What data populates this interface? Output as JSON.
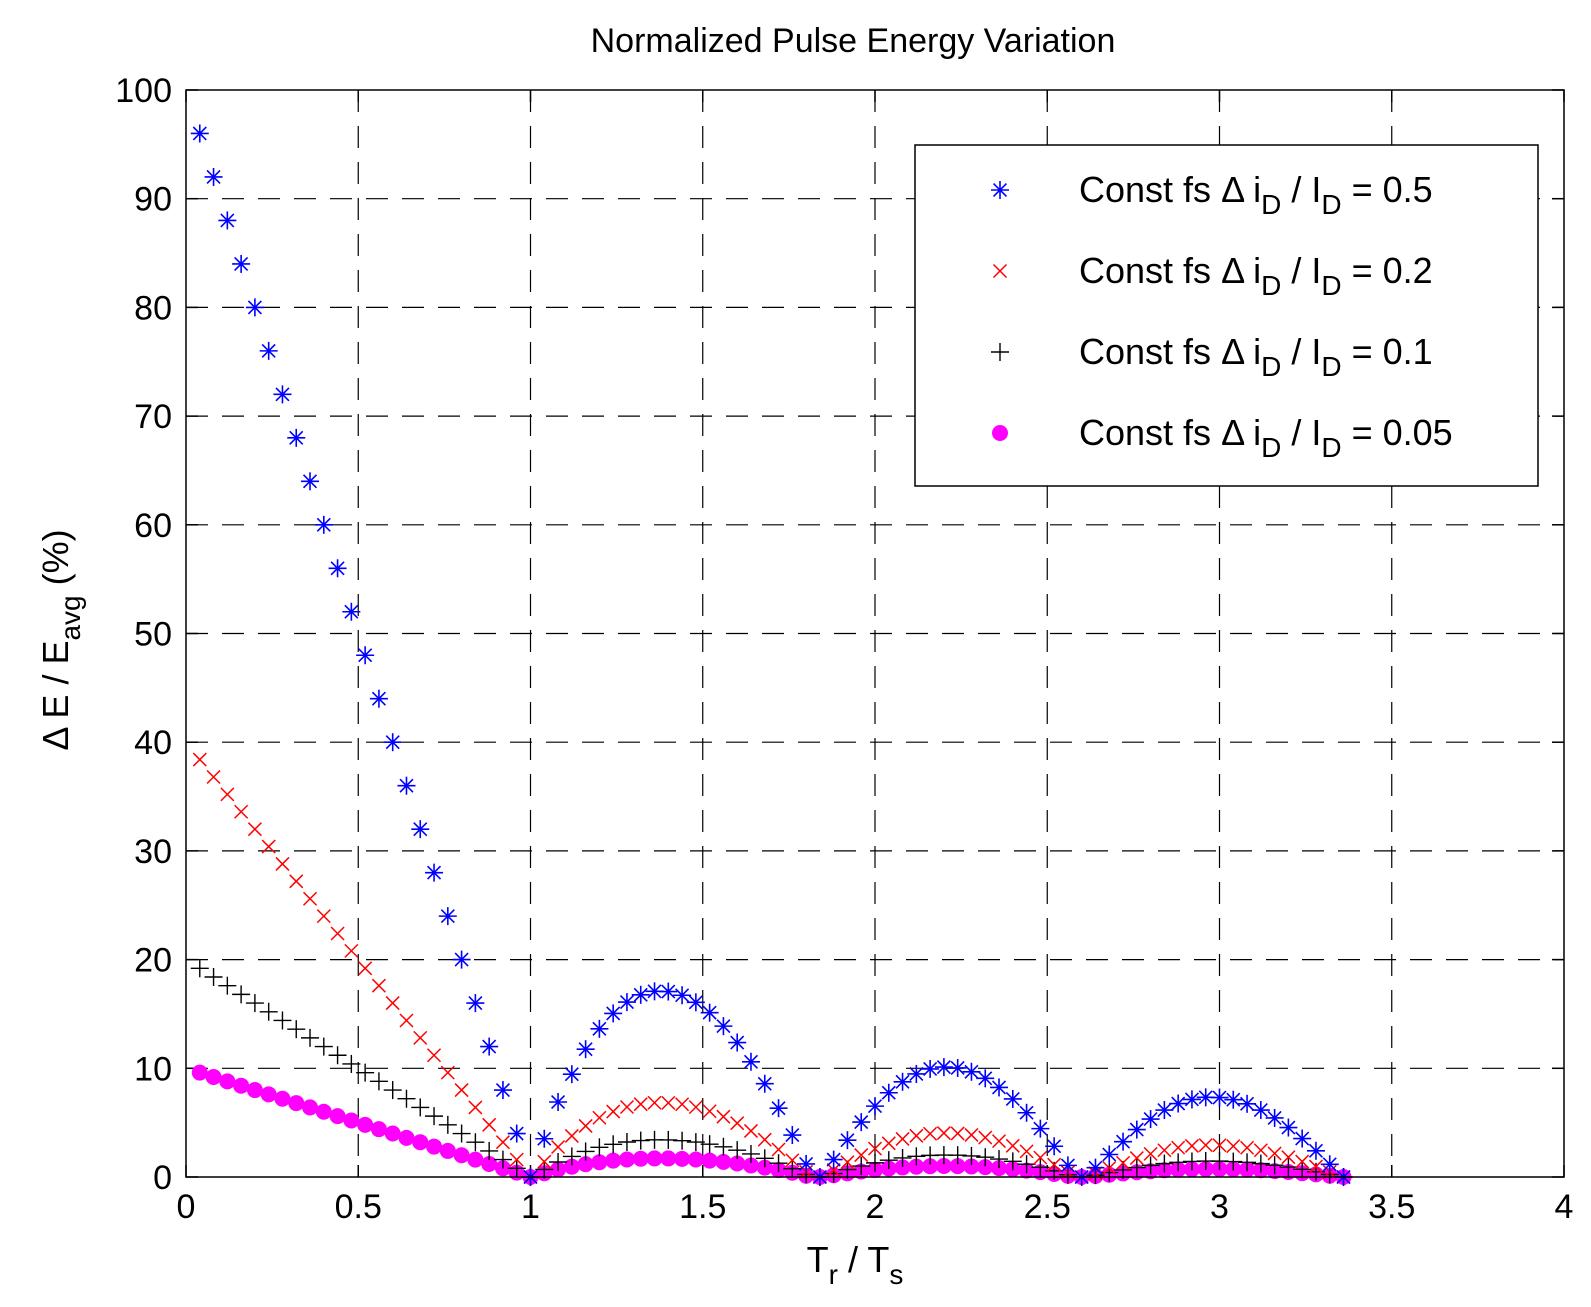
{
  "chart_data": {
    "type": "scatter",
    "title": "Normalized Pulse Energy Variation",
    "xlabel": {
      "main": "T",
      "sub": "r",
      "mid": " / T",
      "sub2": "s"
    },
    "ylabel": {
      "pre": "Δ E / E",
      "sub": "avg",
      "post": " (%)"
    },
    "xlim": [
      0,
      4
    ],
    "ylim": [
      0,
      100
    ],
    "xticks": [
      0,
      0.5,
      1,
      1.5,
      2,
      2.5,
      3,
      3.5,
      4
    ],
    "xtick_labels": [
      "0",
      "0.5",
      "1",
      "1.5",
      "2",
      "2.5",
      "3",
      "3.5",
      "4"
    ],
    "yticks": [
      0,
      10,
      20,
      30,
      40,
      50,
      60,
      70,
      80,
      90,
      100
    ],
    "ytick_labels": [
      "0",
      "10",
      "20",
      "30",
      "40",
      "50",
      "60",
      "70",
      "80",
      "90",
      "100"
    ],
    "grid": true,
    "legend_position": "top-right",
    "sample_step": 0.04,
    "series": [
      {
        "legend": {
          "pre": "Const fs ",
          "delta": "Δ",
          "i": " i",
          "isub": "D",
          "mid": " / I",
          "Isub": "D",
          "post": " = 0.5"
        },
        "marker": "asterisk",
        "color": "#0000ff",
        "values": [
          96,
          92,
          88,
          84,
          80,
          76,
          72,
          68,
          64,
          60,
          56,
          52,
          48,
          44,
          40,
          36,
          32,
          28,
          24,
          20,
          16,
          12,
          8,
          4,
          0,
          3.52,
          6.9,
          9.46,
          11.76,
          13.63,
          15.05,
          16.09,
          16.76,
          17.08,
          17.06,
          16.72,
          16.07,
          15.12,
          13.88,
          12.37,
          10.6,
          8.58,
          6.33,
          3.86,
          1.2,
          0,
          1.6,
          3.39,
          5.05,
          6.52,
          7.75,
          8.76,
          9.48,
          9.94,
          10.11,
          10.03,
          9.68,
          9.08,
          8.24,
          7.18,
          5.91,
          4.45,
          2.83,
          1.07,
          0,
          0.86,
          2.07,
          3.25,
          4.36,
          5.33,
          6.16,
          6.76,
          7.14,
          7.33,
          7.31,
          7.11,
          6.73,
          6.16,
          5.43,
          4.55,
          3.54,
          2.41,
          1.17,
          0
        ]
      },
      {
        "legend": {
          "pre": "Const fs ",
          "delta": "Δ",
          "i": " i",
          "isub": "D",
          "mid": " / I",
          "Isub": "D",
          "post": " = 0.2"
        },
        "marker": "x",
        "color": "#ff0000",
        "values": [
          38.4,
          36.8,
          35.2,
          33.6,
          32,
          30.4,
          28.8,
          27.2,
          25.6,
          24,
          22.4,
          20.8,
          19.2,
          17.6,
          16,
          14.4,
          12.8,
          11.2,
          9.6,
          8,
          6.4,
          4.8,
          3.2,
          1.6,
          0,
          1.41,
          2.76,
          3.78,
          4.7,
          5.45,
          6.02,
          6.44,
          6.7,
          6.83,
          6.82,
          6.69,
          6.43,
          6.05,
          5.55,
          4.95,
          4.24,
          3.43,
          2.53,
          1.54,
          0.48,
          0,
          0.64,
          1.36,
          2.02,
          2.61,
          3.1,
          3.5,
          3.79,
          3.98,
          4.04,
          4.01,
          3.87,
          3.63,
          3.3,
          2.87,
          2.36,
          1.78,
          1.13,
          0.43,
          0,
          0.34,
          0.83,
          1.3,
          1.74,
          2.13,
          2.46,
          2.7,
          2.86,
          2.93,
          2.92,
          2.84,
          2.69,
          2.46,
          2.17,
          1.82,
          1.42,
          0.96,
          0.47,
          0
        ]
      },
      {
        "legend": {
          "pre": "Const fs ",
          "delta": "Δ",
          "i": " i",
          "isub": "D",
          "mid": " / I",
          "Isub": "D",
          "post": " = 0.1"
        },
        "marker": "plus",
        "color": "#000000",
        "values": [
          19.2,
          18.4,
          17.6,
          16.8,
          16,
          15.2,
          14.4,
          13.6,
          12.8,
          12,
          11.2,
          10.4,
          9.6,
          8.8,
          8,
          7.2,
          6.4,
          5.6,
          4.8,
          4,
          3.2,
          2.4,
          1.6,
          0.8,
          0,
          0.7,
          1.38,
          1.89,
          2.35,
          2.73,
          3.01,
          3.22,
          3.35,
          3.42,
          3.41,
          3.34,
          3.21,
          3.02,
          2.78,
          2.47,
          2.12,
          1.72,
          1.27,
          0.77,
          0.24,
          0,
          0.32,
          0.68,
          1.01,
          1.3,
          1.55,
          1.75,
          1.9,
          1.99,
          2.02,
          2.01,
          1.94,
          1.82,
          1.65,
          1.44,
          1.18,
          0.89,
          0.57,
          0.21,
          0,
          0.17,
          0.41,
          0.65,
          0.87,
          1.07,
          1.23,
          1.35,
          1.43,
          1.47,
          1.46,
          1.42,
          1.35,
          1.23,
          1.09,
          0.91,
          0.71,
          0.48,
          0.23,
          0
        ]
      },
      {
        "legend": {
          "pre": "Const fs ",
          "delta": "Δ",
          "i": " i",
          "isub": "D",
          "mid": " / I",
          "Isub": "D",
          "post": " = 0.05"
        },
        "marker": "dot",
        "color": "#ff00ff",
        "values": [
          9.6,
          9.2,
          8.8,
          8.4,
          8,
          7.6,
          7.2,
          6.8,
          6.4,
          6,
          5.6,
          5.2,
          4.8,
          4.4,
          4,
          3.6,
          3.2,
          2.8,
          2.4,
          2,
          1.6,
          1.2,
          0.8,
          0.4,
          0,
          0.35,
          0.69,
          0.95,
          1.18,
          1.36,
          1.51,
          1.61,
          1.68,
          1.71,
          1.71,
          1.67,
          1.61,
          1.51,
          1.39,
          1.24,
          1.06,
          0.86,
          0.63,
          0.39,
          0.12,
          0,
          0.16,
          0.34,
          0.51,
          0.65,
          0.78,
          0.88,
          0.95,
          0.99,
          1.01,
          1,
          0.97,
          0.91,
          0.82,
          0.72,
          0.59,
          0.45,
          0.28,
          0.11,
          0,
          0.09,
          0.21,
          0.33,
          0.44,
          0.53,
          0.62,
          0.68,
          0.71,
          0.73,
          0.73,
          0.71,
          0.67,
          0.62,
          0.54,
          0.46,
          0.35,
          0.24,
          0.12,
          0
        ]
      }
    ]
  }
}
